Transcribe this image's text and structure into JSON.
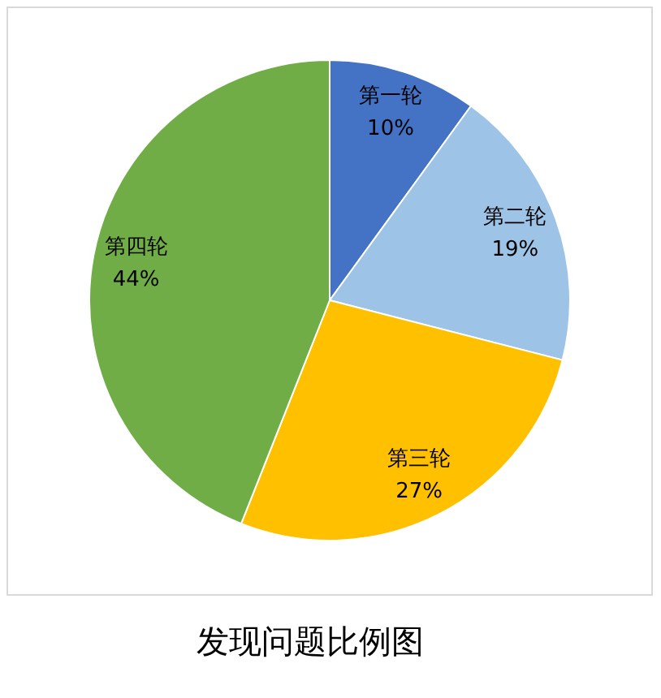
{
  "chart_data": {
    "type": "pie",
    "title": "发现问题比例图",
    "categories": [
      "第一轮",
      "第二轮",
      "第三轮",
      "第四轮"
    ],
    "values": [
      10,
      19,
      27,
      44
    ],
    "value_labels": [
      "10%",
      "19%",
      "27%",
      "44%"
    ],
    "colors": [
      "#4472c4",
      "#9dc3e6",
      "#ffc000",
      "#70ad47"
    ],
    "legend": false
  }
}
